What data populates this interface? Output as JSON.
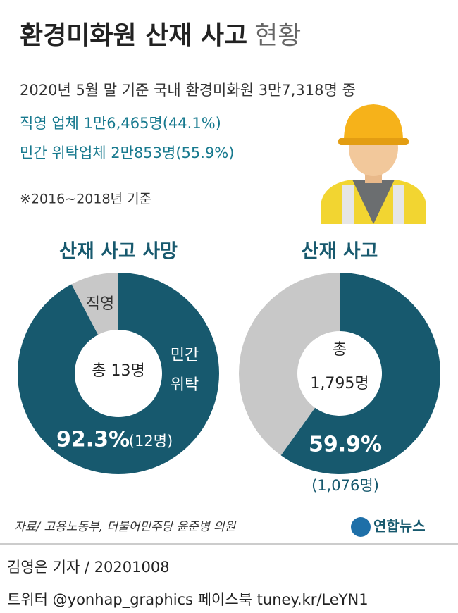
{
  "header": {
    "title": "환경미화원 산재 사고",
    "title_suffix": "현황",
    "lines": [
      "2020년 5월 말 기준 국내 환경미화원 3만7,318명 중",
      "직영 업체 1만6,465명(44.1%)",
      "민간 위탁업체 2만853명(55.9%)"
    ],
    "note": "※2016~2018년 기준"
  },
  "chart_data": [
    {
      "type": "donut",
      "title": "산재 사고 사망",
      "center_label": [
        "총 13명"
      ],
      "categories": [
        "민간 위탁",
        "직영"
      ],
      "values": [
        92.3,
        7.7
      ],
      "value_labels": [
        [
          "92.3%",
          "(12명)"
        ],
        null
      ],
      "colors": [
        "#17596e",
        "#c8c8c8"
      ]
    },
    {
      "type": "donut",
      "title": "산재 사고",
      "center_label": [
        "총",
        "1,795명"
      ],
      "categories": [
        null,
        null
      ],
      "values": [
        59.9,
        40.1
      ],
      "value_labels": [
        [
          "59.9%",
          "(1,076명)"
        ],
        null
      ],
      "colors": [
        "#17596e",
        "#c8c8c8"
      ]
    }
  ],
  "footer": {
    "source": "자료/ 고용노동부, 더불어민주당 윤준병 의원",
    "logo": "연합뉴스",
    "byline": "김영은 기자 / 20201008",
    "social": "트위터 @yonhap_graphics  페이스북 tuney.kr/LeYN1"
  }
}
